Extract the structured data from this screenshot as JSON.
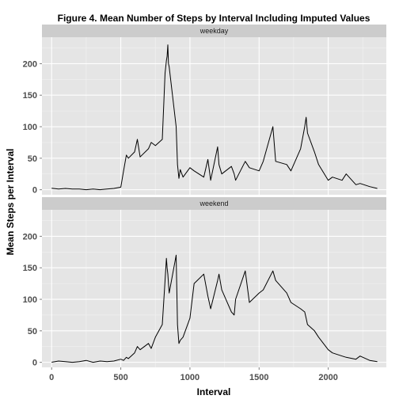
{
  "chart_data": {
    "type": "line",
    "title": "Figure 4. Mean Number of Steps by Interval Including Imputed Values",
    "xlabel": "Interval",
    "ylabel": "Mean Steps per Interval",
    "xlim": [
      -70,
      2420
    ],
    "ylim": [
      -8,
      242
    ],
    "x_ticks": [
      0,
      500,
      1000,
      1500,
      2000
    ],
    "y_ticks": [
      0,
      50,
      100,
      150,
      200
    ],
    "grid": true,
    "line_color": "#000000",
    "panel_background": "#e5e5e5",
    "strip_background": "#cccccc",
    "grid_color": "#ffffff",
    "panels": [
      {
        "name": "weekday",
        "x": [
          0,
          50,
          100,
          150,
          200,
          250,
          300,
          350,
          400,
          450,
          500,
          520,
          540,
          555,
          600,
          620,
          640,
          700,
          720,
          750,
          800,
          820,
          830,
          835,
          840,
          845,
          850,
          900,
          910,
          920,
          930,
          950,
          1000,
          1030,
          1100,
          1130,
          1150,
          1200,
          1210,
          1230,
          1300,
          1320,
          1330,
          1400,
          1430,
          1500,
          1530,
          1600,
          1620,
          1700,
          1730,
          1800,
          1830,
          1840,
          1850,
          1900,
          1930,
          2000,
          2030,
          2100,
          2130,
          2200,
          2230,
          2300,
          2355
        ],
        "values": [
          2.3,
          1,
          2,
          1,
          1,
          0,
          1,
          0,
          1,
          2,
          4,
          30,
          55,
          50,
          60,
          80,
          52,
          65,
          75,
          70,
          80,
          185,
          205,
          212,
          230,
          200,
          195,
          100,
          40,
          18,
          32,
          20,
          35,
          30,
          20,
          48,
          15,
          68,
          40,
          25,
          37,
          25,
          15,
          45,
          35,
          30,
          45,
          100,
          45,
          40,
          30,
          65,
          100,
          115,
          90,
          60,
          40,
          15,
          20,
          15,
          25,
          8,
          10,
          5,
          2
        ]
      },
      {
        "name": "weekend",
        "x": [
          0,
          50,
          100,
          150,
          200,
          250,
          300,
          350,
          400,
          450,
          500,
          520,
          540,
          555,
          600,
          620,
          640,
          700,
          720,
          750,
          800,
          820,
          830,
          835,
          840,
          845,
          850,
          900,
          910,
          920,
          930,
          950,
          1000,
          1030,
          1100,
          1130,
          1150,
          1200,
          1210,
          1230,
          1300,
          1320,
          1330,
          1400,
          1430,
          1500,
          1530,
          1600,
          1620,
          1700,
          1730,
          1800,
          1830,
          1840,
          1850,
          1900,
          1930,
          2000,
          2030,
          2100,
          2130,
          2200,
          2230,
          2300,
          2355
        ],
        "values": [
          0.2,
          2,
          1,
          0,
          1,
          3,
          0,
          2,
          1,
          2,
          5,
          3,
          8,
          6,
          15,
          25,
          20,
          30,
          22,
          40,
          60,
          130,
          165,
          150,
          140,
          125,
          110,
          170,
          60,
          30,
          35,
          40,
          70,
          125,
          140,
          105,
          85,
          130,
          140,
          115,
          80,
          75,
          100,
          145,
          95,
          110,
          115,
          145,
          130,
          110,
          95,
          85,
          80,
          70,
          60,
          50,
          40,
          20,
          15,
          10,
          8,
          5,
          10,
          3,
          1
        ]
      }
    ]
  }
}
